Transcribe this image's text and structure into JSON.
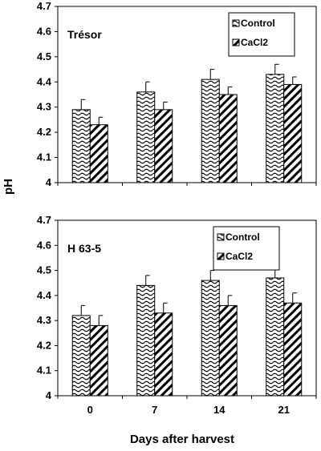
{
  "figure": {
    "ylabel": "pH",
    "xlabel": "Days after harvest"
  },
  "chart_data": [
    {
      "type": "bar",
      "title": "Trésor",
      "categories": [
        "0",
        "7",
        "14",
        "21"
      ],
      "ylim": [
        4,
        4.7
      ],
      "yticks": [
        "4",
        "4.1",
        "4.2",
        "4.3",
        "4.4",
        "4.5",
        "4.6",
        "4.7"
      ],
      "grid": false,
      "legend_position": "top-right",
      "series": [
        {
          "name": "Control",
          "values": [
            4.29,
            4.36,
            4.41,
            4.43
          ],
          "errors": [
            0.04,
            0.04,
            0.04,
            0.04
          ],
          "pattern": "wave"
        },
        {
          "name": "CaCl2",
          "values": [
            4.23,
            4.29,
            4.35,
            4.39
          ],
          "errors": [
            0.03,
            0.03,
            0.03,
            0.03
          ],
          "pattern": "diagonal"
        }
      ]
    },
    {
      "type": "bar",
      "title": "H 63-5",
      "categories": [
        "0",
        "7",
        "14",
        "21"
      ],
      "ylim": [
        4,
        4.7
      ],
      "yticks": [
        "4",
        "4.1",
        "4.2",
        "4.3",
        "4.4",
        "4.5",
        "4.6",
        "4.7"
      ],
      "grid": false,
      "legend_position": "top-right",
      "series": [
        {
          "name": "Control",
          "values": [
            4.32,
            4.44,
            4.46,
            4.47
          ],
          "errors": [
            0.04,
            0.04,
            0.04,
            0.04
          ],
          "pattern": "wave"
        },
        {
          "name": "CaCl2",
          "values": [
            4.28,
            4.33,
            4.36,
            4.37
          ],
          "errors": [
            0.04,
            0.04,
            0.04,
            0.04
          ],
          "pattern": "diagonal"
        }
      ]
    }
  ]
}
